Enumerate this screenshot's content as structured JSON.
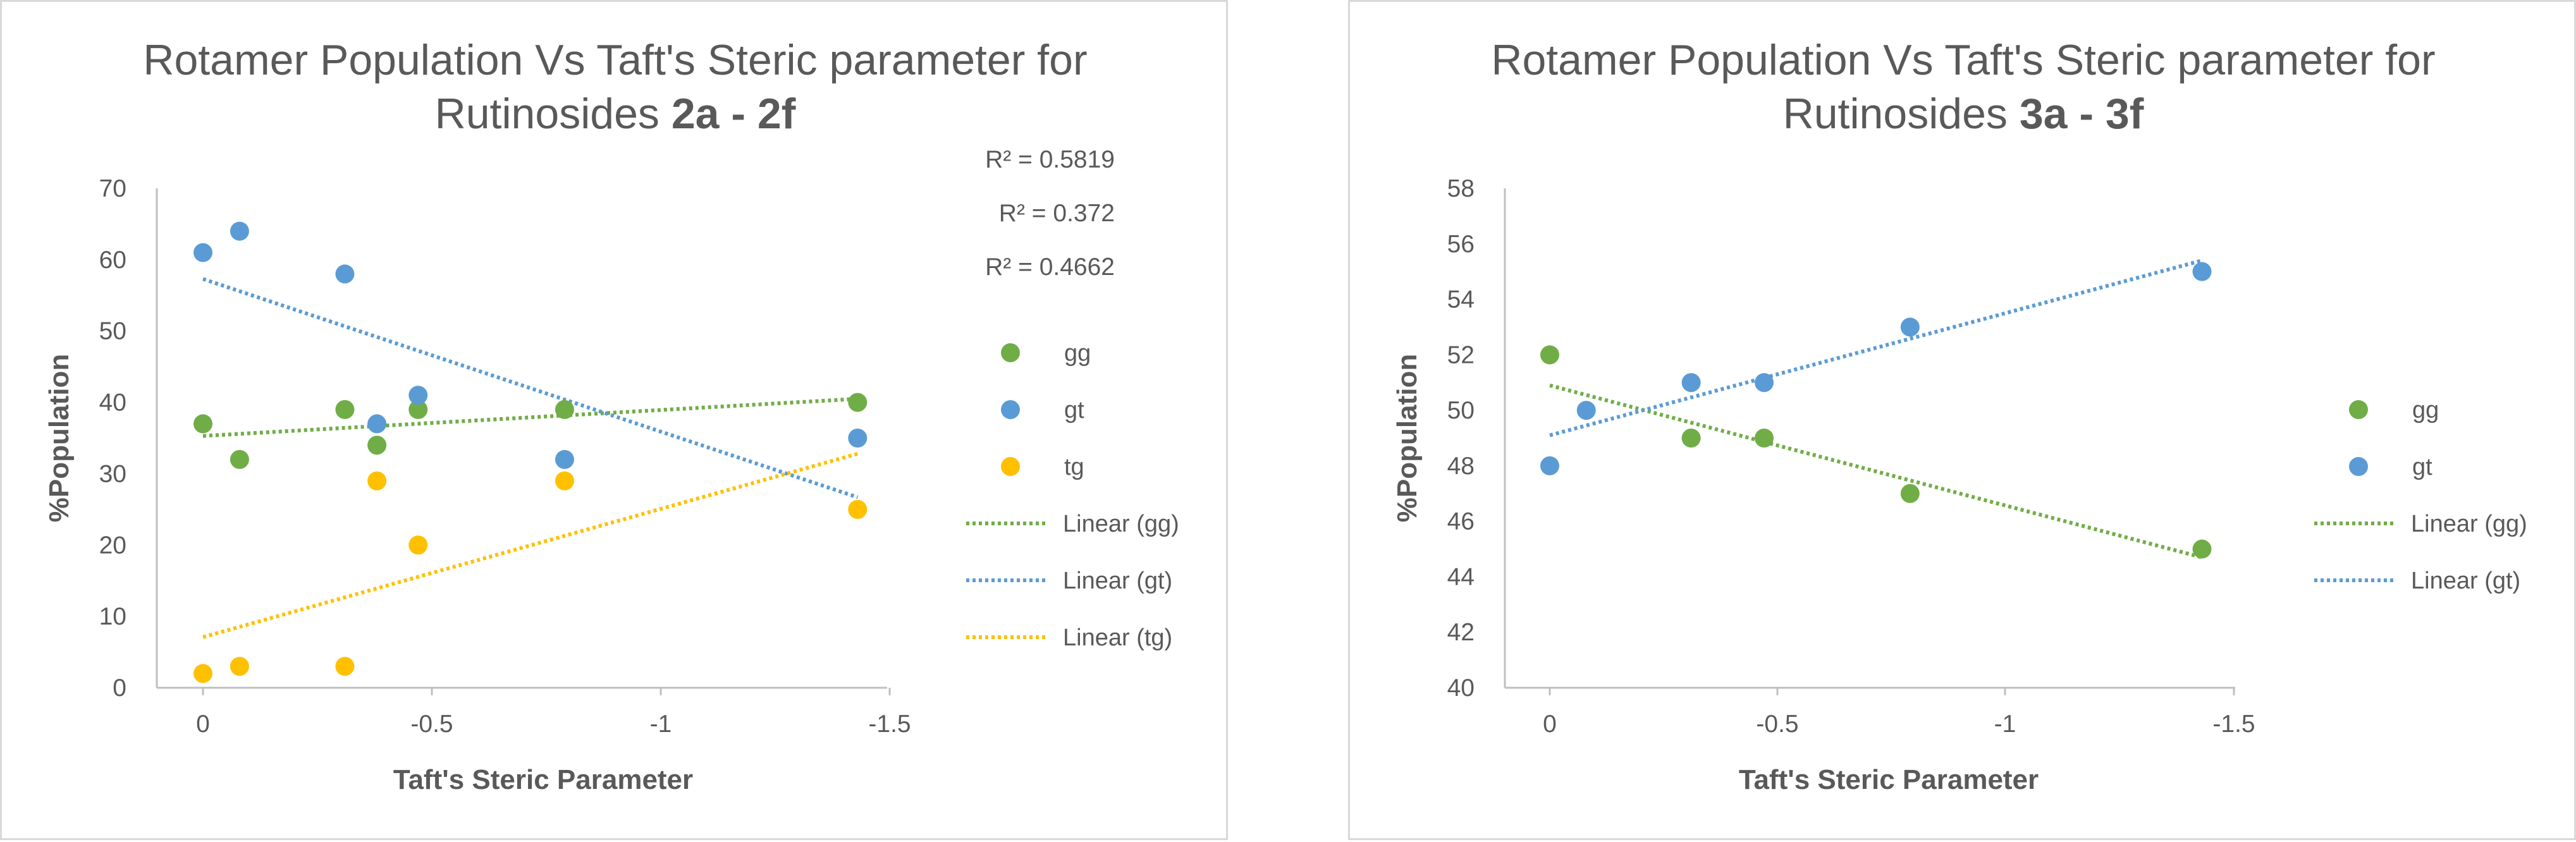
{
  "colors": {
    "gg": "#70ad47",
    "gt": "#5b9bd5",
    "tg": "#ffc000",
    "axis": "#bfbfbf",
    "text": "#595959"
  },
  "chart_data": [
    {
      "type": "scatter",
      "title": {
        "line1": "Rotamer Population Vs Taft's Steric parameter for",
        "line2_prefix": "Rutinosides ",
        "line2_bold": "2a - 2f"
      },
      "xlabel": "Taft's Steric Parameter",
      "ylabel": "%Population",
      "xlim": [
        0,
        -1.5
      ],
      "ylim": [
        0,
        70
      ],
      "x_ticks": [
        "0",
        "-0.5",
        "-1",
        "-1.5"
      ],
      "y_ticks": [
        "0",
        "10",
        "20",
        "30",
        "40",
        "50",
        "60",
        "70"
      ],
      "grid": false,
      "legend_position": "right",
      "series": [
        {
          "name": "gg",
          "color_key": "gg",
          "points": [
            [
              0,
              37
            ],
            [
              -0.08,
              32
            ],
            [
              -0.31,
              39
            ],
            [
              -0.38,
              34
            ],
            [
              -0.47,
              39
            ],
            [
              -0.79,
              39
            ],
            [
              -1.43,
              40
            ]
          ]
        },
        {
          "name": "gt",
          "color_key": "gt",
          "points": [
            [
              0,
              61
            ],
            [
              -0.08,
              64
            ],
            [
              -0.31,
              58
            ],
            [
              -0.38,
              37
            ],
            [
              -0.47,
              41
            ],
            [
              -0.79,
              32
            ],
            [
              -1.43,
              35
            ]
          ]
        },
        {
          "name": "tg",
          "color_key": "tg",
          "points": [
            [
              0,
              2
            ],
            [
              -0.08,
              3
            ],
            [
              -0.31,
              3
            ],
            [
              -0.38,
              29
            ],
            [
              -0.47,
              20
            ],
            [
              -0.79,
              29
            ],
            [
              -1.43,
              25
            ]
          ]
        }
      ],
      "trendlines": [
        {
          "name": "Linear (gg)",
          "color_key": "gg",
          "x": [
            0,
            -1.43
          ],
          "y": [
            35.3,
            40.5
          ]
        },
        {
          "name": "Linear (gt)",
          "color_key": "gt",
          "x": [
            0,
            -1.43
          ],
          "y": [
            57.3,
            26.7
          ]
        },
        {
          "name": "Linear (tg)",
          "color_key": "tg",
          "x": [
            0,
            -1.43
          ],
          "y": [
            7.1,
            32.8
          ]
        }
      ],
      "r_squared": [
        "R² = 0.5819",
        "R² = 0.372",
        "R² = 0.4662"
      ],
      "legend": [
        "gg",
        "gt",
        "tg",
        "Linear (gg)",
        "Linear (gt)",
        "Linear (tg)"
      ]
    },
    {
      "type": "scatter",
      "title": {
        "line1": "Rotamer Population Vs Taft's Steric parameter for",
        "line2_prefix": "Rutinosides ",
        "line2_bold": "3a - 3f"
      },
      "xlabel": "Taft's Steric Parameter",
      "ylabel": "%Population",
      "xlim": [
        0,
        -1.5
      ],
      "ylim": [
        40,
        58
      ],
      "x_ticks": [
        "0",
        "-0.5",
        "-1",
        "-1.5"
      ],
      "y_ticks": [
        "40",
        "42",
        "44",
        "46",
        "48",
        "50",
        "52",
        "54",
        "56",
        "58"
      ],
      "grid": false,
      "legend_position": "right",
      "series": [
        {
          "name": "gg",
          "color_key": "gg",
          "points": [
            [
              0,
              52
            ],
            [
              -0.31,
              49
            ],
            [
              -0.47,
              49
            ],
            [
              -0.79,
              47
            ],
            [
              -1.43,
              45
            ]
          ]
        },
        {
          "name": "gt",
          "color_key": "gt",
          "points": [
            [
              0,
              48
            ],
            [
              -0.08,
              50
            ],
            [
              -0.31,
              51
            ],
            [
              -0.47,
              51
            ],
            [
              -0.79,
              53
            ],
            [
              -1.43,
              55
            ]
          ]
        }
      ],
      "trendlines": [
        {
          "name": "Linear (gg)",
          "color_key": "gg",
          "x": [
            0,
            -1.43
          ],
          "y": [
            50.9,
            44.7
          ]
        },
        {
          "name": "Linear (gt)",
          "color_key": "gt",
          "x": [
            0,
            -1.43
          ],
          "y": [
            49.1,
            55.4
          ]
        }
      ],
      "r_squared": [],
      "legend": [
        "gg",
        "gt",
        "Linear (gg)",
        "Linear (gt)"
      ]
    }
  ]
}
